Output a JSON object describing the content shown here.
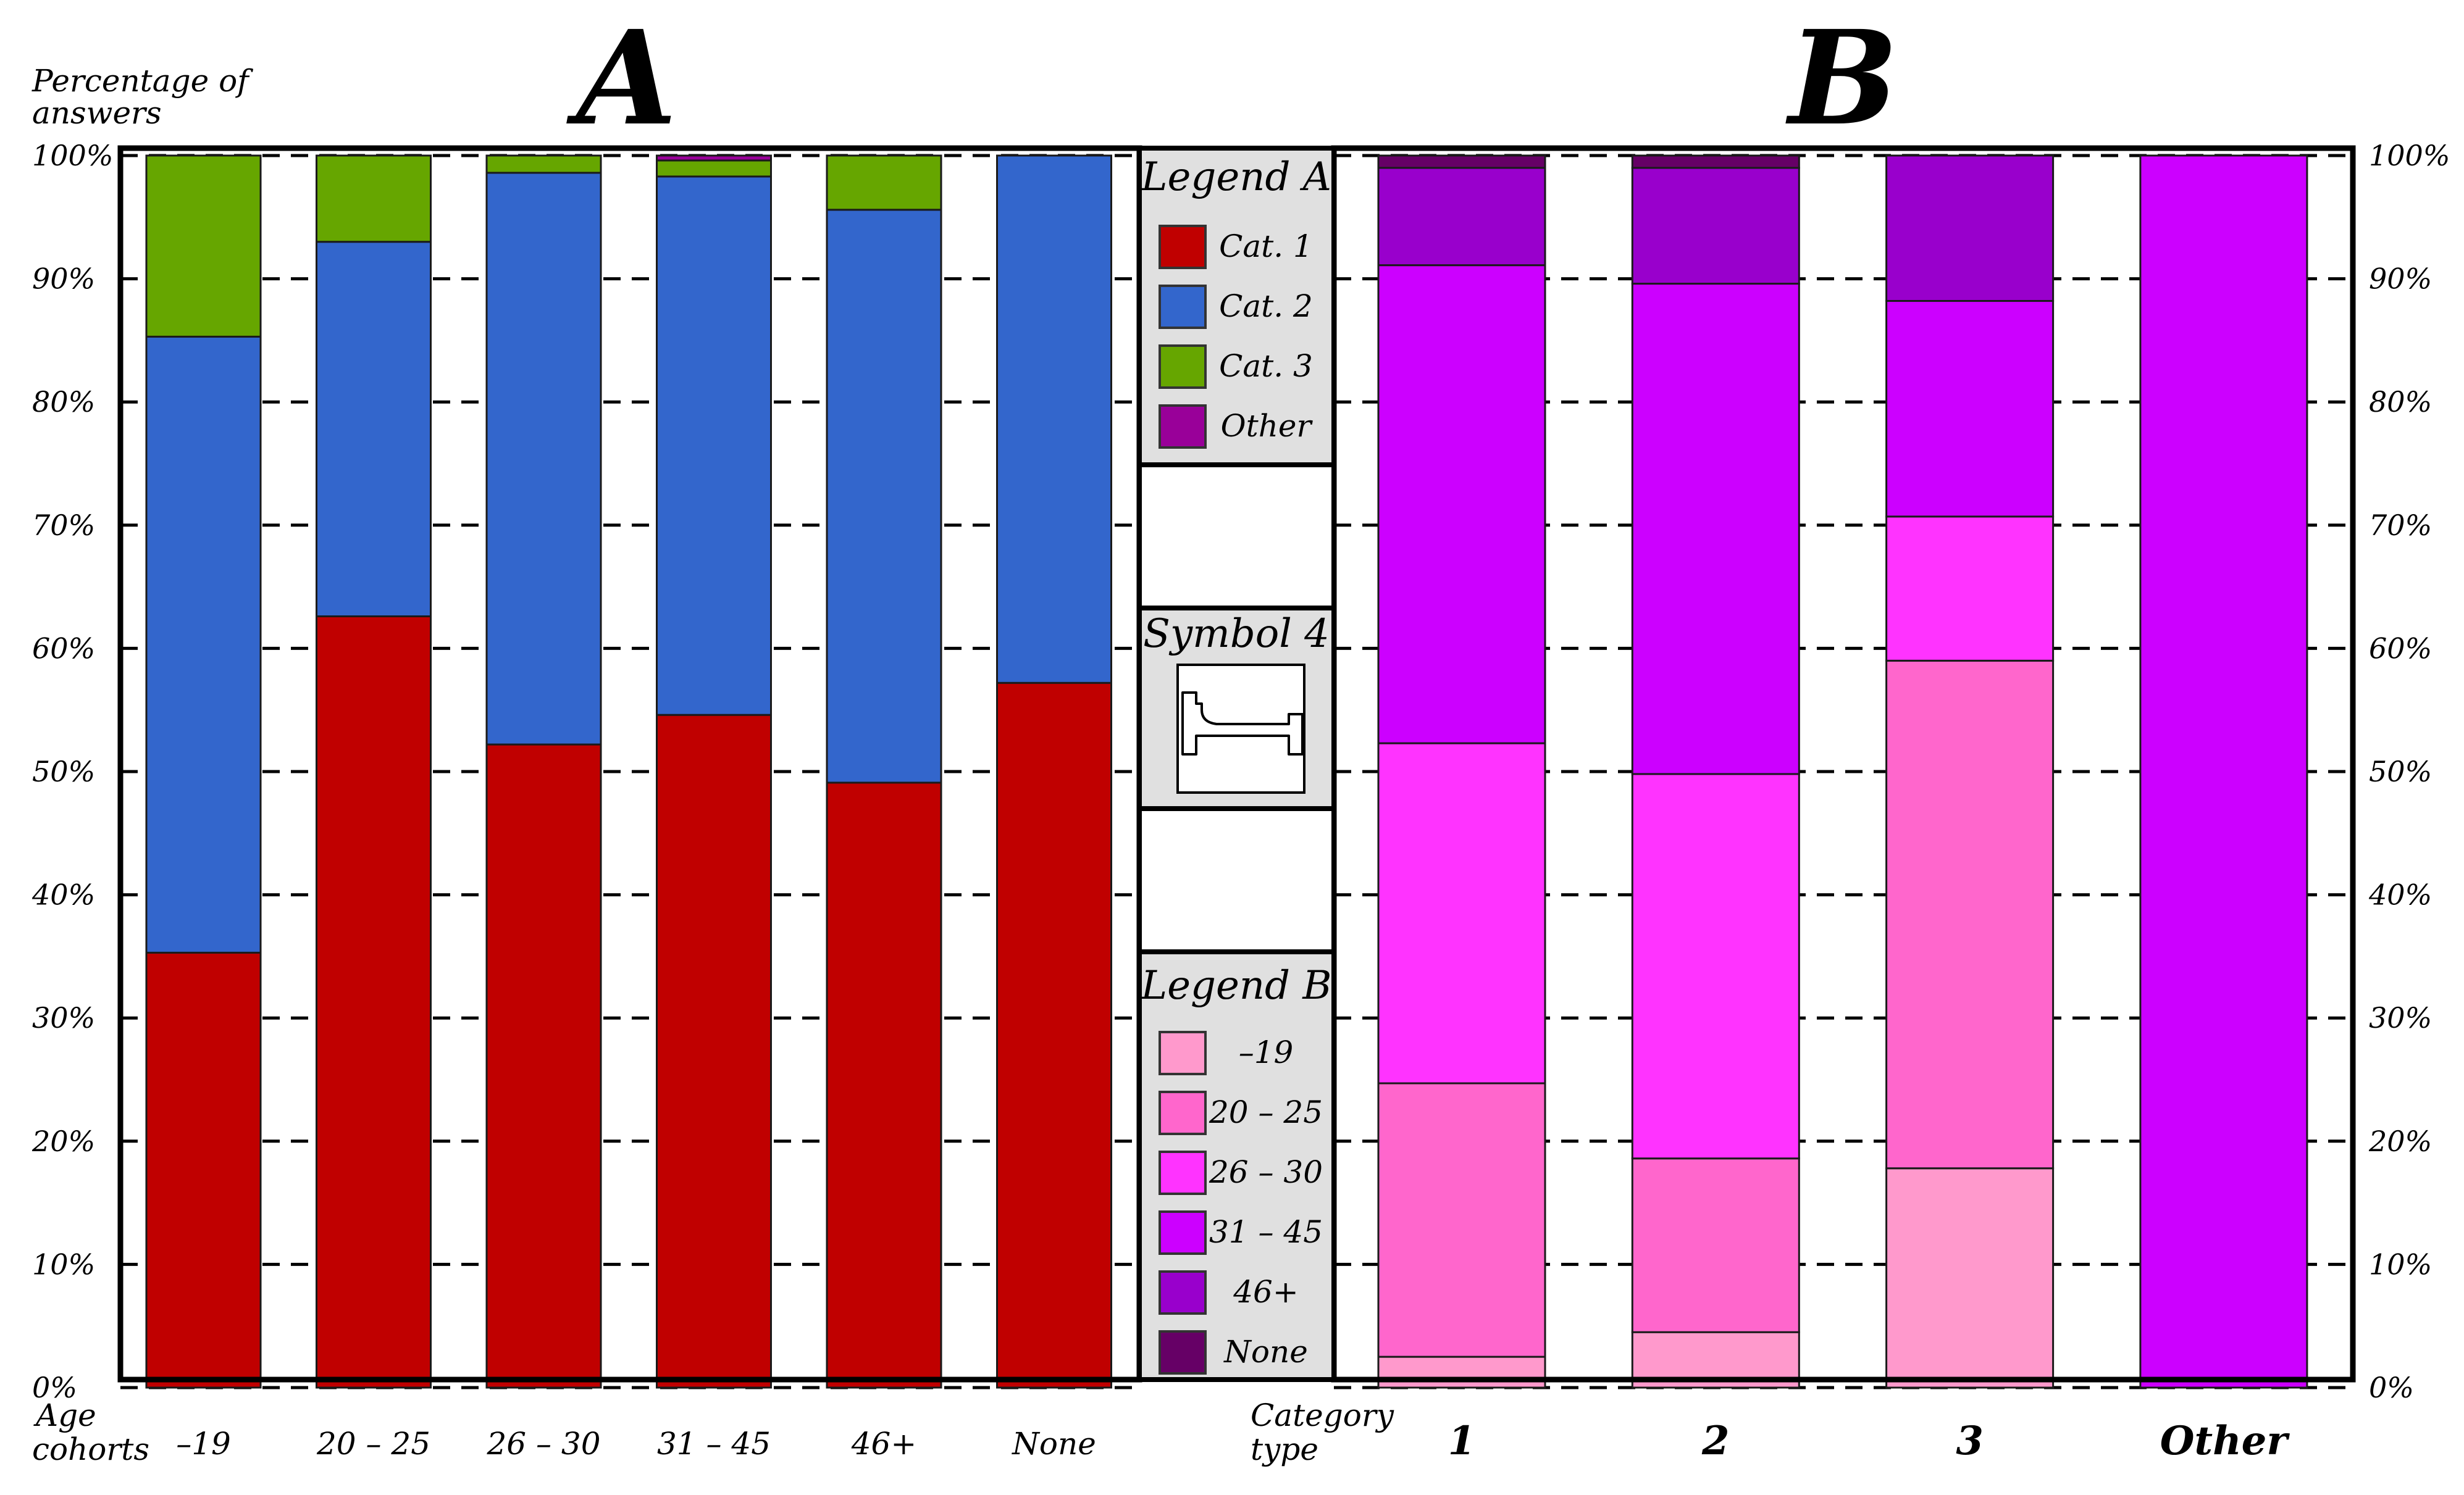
{
  "chart_data": [
    {
      "id": "A",
      "type": "bar",
      "stacked": true,
      "title": "A",
      "ylabel": "Percentage of answers",
      "xlabel": "Age cohorts",
      "ylim": [
        0,
        100
      ],
      "yticks": [
        "0%",
        "10%",
        "20%",
        "30%",
        "40%",
        "50%",
        "60%",
        "70%",
        "80%",
        "90%",
        "100%"
      ],
      "grid": "dashed horizontal",
      "categories": [
        "–19",
        "20 – 25",
        "26 – 30",
        "31 – 45",
        "46+",
        "None"
      ],
      "series": [
        {
          "name": "Cat. 1",
          "color": "#c00000",
          "values": [
            35.3,
            62.6,
            52.2,
            54.6,
            49.1,
            57.2
          ]
        },
        {
          "name": "Cat. 2",
          "color": "#3366cc",
          "values": [
            50.0,
            30.4,
            46.4,
            43.7,
            46.5,
            42.8
          ]
        },
        {
          "name": "Cat. 3",
          "color": "#66a600",
          "values": [
            14.7,
            7.0,
            1.4,
            1.3,
            4.4,
            0
          ]
        },
        {
          "name": "Other",
          "color": "#990099",
          "values": [
            0,
            0,
            0,
            0.4,
            0,
            0
          ]
        }
      ]
    },
    {
      "id": "B",
      "type": "bar",
      "stacked": true,
      "title": "B",
      "xlabel": "Category type",
      "ylim": [
        0,
        100
      ],
      "yticks": [
        "0%",
        "10%",
        "20%",
        "30%",
        "40%",
        "50%",
        "60%",
        "70%",
        "80%",
        "90%",
        "100%"
      ],
      "grid": "dashed horizontal",
      "categories": [
        "1",
        "2",
        "3",
        "Other"
      ],
      "series": [
        {
          "name": "–19",
          "color": "#ff99cc",
          "values": [
            2.5,
            4.5,
            17.8,
            0
          ]
        },
        {
          "name": "20 – 25",
          "color": "#ff66cc",
          "values": [
            22.2,
            14.1,
            41.2,
            0
          ]
        },
        {
          "name": "26 – 30",
          "color": "#ff33ff",
          "values": [
            27.6,
            31.2,
            11.7,
            0
          ]
        },
        {
          "name": "31 – 45",
          "color": "#cc00ff",
          "values": [
            38.8,
            39.8,
            17.5,
            100
          ]
        },
        {
          "name": "46+",
          "color": "#9900cc",
          "values": [
            7.9,
            9.4,
            11.8,
            0
          ]
        },
        {
          "name": "None",
          "color": "#660066",
          "values": [
            1.0,
            1.0,
            0,
            0
          ]
        }
      ]
    }
  ],
  "legend_a": {
    "title": "Legend A",
    "items": [
      "Cat. 1",
      "Cat. 2",
      "Cat. 3",
      "Other"
    ]
  },
  "legend_b": {
    "title": "Legend B",
    "items": [
      "–19",
      "20 – 25",
      "26 – 30",
      "31 – 45",
      "46+",
      "None"
    ]
  },
  "symbol": {
    "title": "Symbol 4",
    "icon": "bed-icon"
  },
  "labels": {
    "ylabel_line1": "Percentage of",
    "ylabel_line2": "answers",
    "xlabel_a_line1": "Age",
    "xlabel_a_line2": "cohorts",
    "xlabel_b_line1": "Category",
    "xlabel_b_line2": "type"
  }
}
